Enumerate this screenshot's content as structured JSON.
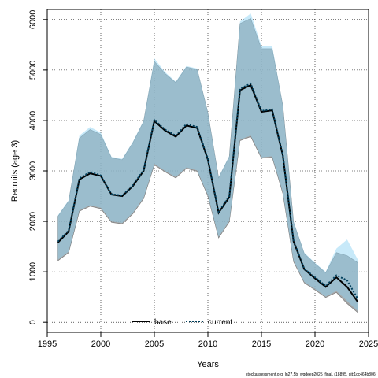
{
  "chart_data": {
    "type": "area",
    "xlabel": "Years",
    "ylabel": "Recruits (age 3)",
    "xlim": [
      1995,
      2025
    ],
    "ylim": [
      -200,
      6200
    ],
    "x_ticks": [
      1995,
      2000,
      2005,
      2010,
      2015,
      2020,
      2025
    ],
    "y_ticks": [
      0,
      1000,
      2000,
      3000,
      4000,
      5000,
      6000
    ],
    "grid": true,
    "legend_position": "bottom-center",
    "x": [
      1996,
      1997,
      1998,
      1999,
      2000,
      2001,
      2002,
      2003,
      2004,
      2005,
      2006,
      2007,
      2008,
      2009,
      2010,
      2011,
      2012,
      2013,
      2014,
      2015,
      2016,
      2017,
      2018,
      2019,
      2020,
      2021,
      2022,
      2023,
      2024
    ],
    "series": [
      {
        "name": "base",
        "color": "#000000",
        "line_style": "solid",
        "band_color": "#8a8a8a",
        "values": [
          1580,
          1800,
          2830,
          2950,
          2900,
          2530,
          2500,
          2700,
          3000,
          3990,
          3800,
          3680,
          3900,
          3850,
          3220,
          2170,
          2480,
          4600,
          4700,
          4170,
          4200,
          3300,
          1600,
          1050,
          870,
          700,
          890,
          700,
          400
        ],
        "lower": [
          1220,
          1380,
          2200,
          2300,
          2250,
          1980,
          1950,
          2150,
          2450,
          3120,
          2980,
          2860,
          3050,
          2990,
          2500,
          1670,
          1990,
          3600,
          3680,
          3250,
          3270,
          2550,
          1200,
          780,
          640,
          490,
          590,
          370,
          190
        ],
        "upper": [
          2100,
          2400,
          3650,
          3820,
          3720,
          3260,
          3220,
          3560,
          3980,
          5170,
          4930,
          4750,
          5060,
          5010,
          4150,
          2860,
          3280,
          5920,
          6020,
          5420,
          5420,
          4290,
          1980,
          1360,
          1160,
          980,
          1380,
          1320,
          1180
        ]
      },
      {
        "name": "current",
        "color": "#003f5c",
        "line_style": "dotted",
        "band_color": "#8fd3f4",
        "values": [
          1600,
          1820,
          2850,
          2980,
          2910,
          2540,
          2510,
          2720,
          3020,
          4010,
          3820,
          3700,
          3930,
          3870,
          3240,
          2190,
          2500,
          4630,
          4730,
          4190,
          4220,
          3320,
          1620,
          1060,
          890,
          720,
          930,
          830,
          460
        ],
        "lower": [
          1240,
          1400,
          2220,
          2320,
          2270,
          2000,
          1970,
          2170,
          2470,
          3140,
          3000,
          2880,
          3070,
          3010,
          2520,
          1690,
          2010,
          3620,
          3700,
          3270,
          3290,
          2570,
          1220,
          800,
          660,
          510,
          620,
          420,
          220
        ],
        "upper": [
          2120,
          2420,
          3700,
          3870,
          3760,
          3280,
          3240,
          3580,
          4000,
          5230,
          4960,
          4770,
          5080,
          5030,
          4170,
          2880,
          3300,
          5960,
          6120,
          5480,
          5480,
          4310,
          2000,
          1380,
          1180,
          1000,
          1460,
          1640,
          1240
        ]
      }
    ]
  },
  "legend": {
    "items": [
      {
        "label": "base",
        "color": "#000000",
        "style": "solid"
      },
      {
        "label": "current",
        "color": "#003f5c",
        "style": "dotted"
      }
    ]
  },
  "footnote": "stockassessment.org, ln27.5b_wgdeep2025_final, r18895, git:1cc464b806f"
}
